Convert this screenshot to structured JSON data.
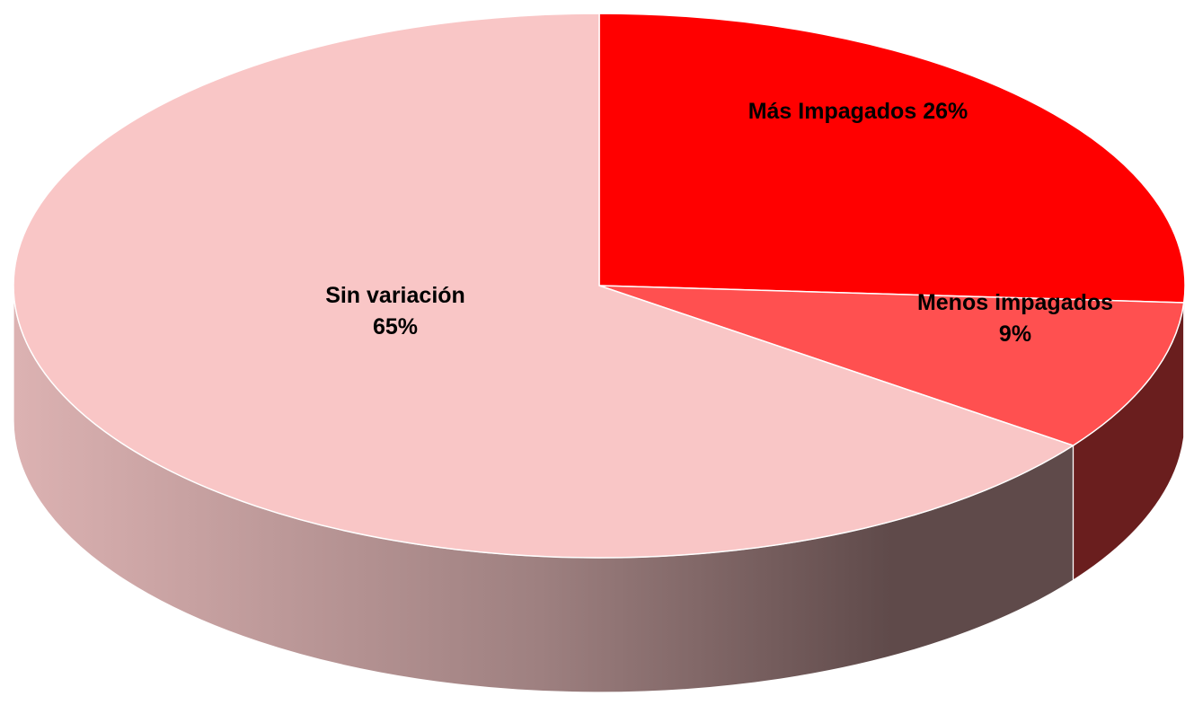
{
  "chart_data": {
    "type": "pie",
    "categories": [
      "Más Impagados",
      "Menos impagados",
      "Sin variación"
    ],
    "values": [
      26,
      9,
      65
    ],
    "value_labels": [
      "26%",
      "9%",
      "65%"
    ],
    "colors": [
      "#ff0000",
      "#ff5050",
      "#f9c6c6"
    ]
  }
}
